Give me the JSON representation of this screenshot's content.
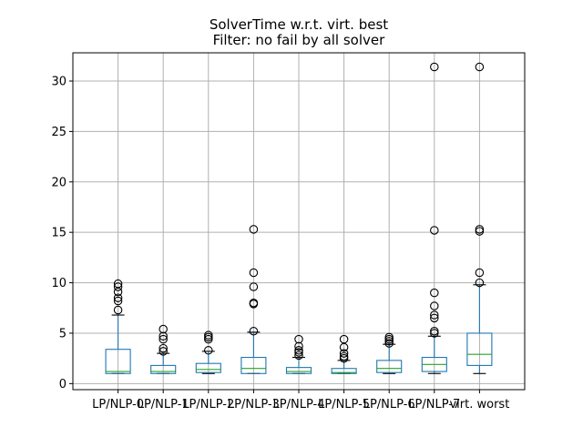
{
  "chart_data": {
    "type": "box",
    "title": "SolverTime w.r.t. virt. best",
    "subtitle": "Filter: no fail by all solver",
    "xlabel": "",
    "ylabel": "",
    "ylim": [
      -0.6,
      32.8
    ],
    "yticks": [
      0,
      5,
      10,
      15,
      20,
      25,
      30
    ],
    "grid": true,
    "colors": {
      "box": "#1f77b4",
      "median": "#2ca02c",
      "cap": "#000000",
      "flier": "#000000",
      "grid": "#b0b0b0"
    },
    "categories": [
      "LP/NLP-0",
      "LP/NLP-1",
      "LP/NLP-2",
      "LP/NLP-3",
      "LP/NLP-4",
      "LP/NLP-5",
      "LP/NLP-6",
      "LP/NLP-7",
      "virt. worst"
    ],
    "boxes": [
      {
        "whislo": 1.0,
        "q1": 1.0,
        "med": 1.2,
        "q3": 3.4,
        "whishi": 6.8,
        "fliers": [
          7.3,
          8.2,
          8.5,
          9.1,
          9.6,
          9.9
        ]
      },
      {
        "whislo": 1.0,
        "q1": 1.0,
        "med": 1.2,
        "q3": 1.8,
        "whishi": 3.0,
        "fliers": [
          3.2,
          3.5,
          4.4,
          4.7,
          5.4
        ]
      },
      {
        "whislo": 1.0,
        "q1": 1.1,
        "med": 1.4,
        "q3": 2.0,
        "whishi": 3.2,
        "fliers": [
          3.3,
          4.4,
          4.6,
          4.8
        ]
      },
      {
        "whislo": 1.0,
        "q1": 1.0,
        "med": 1.5,
        "q3": 2.6,
        "whishi": 5.1,
        "fliers": [
          5.2,
          7.9,
          8.0,
          9.6,
          11.0,
          15.3
        ]
      },
      {
        "whislo": 1.0,
        "q1": 1.0,
        "med": 1.2,
        "q3": 1.6,
        "whishi": 2.6,
        "fliers": [
          2.8,
          3.1,
          3.3,
          3.7,
          4.4
        ]
      },
      {
        "whislo": 1.0,
        "q1": 1.0,
        "med": 1.1,
        "q3": 1.5,
        "whishi": 2.3,
        "fliers": [
          2.5,
          2.7,
          3.0,
          3.6,
          4.4
        ]
      },
      {
        "whislo": 1.0,
        "q1": 1.1,
        "med": 1.5,
        "q3": 2.3,
        "whishi": 3.9,
        "fliers": [
          4.0,
          4.2,
          4.4,
          4.6
        ]
      },
      {
        "whislo": 1.0,
        "q1": 1.2,
        "med": 1.9,
        "q3": 2.6,
        "whishi": 4.7,
        "fliers": [
          5.0,
          5.2,
          6.5,
          6.8,
          7.7,
          9.0,
          15.2,
          31.4
        ]
      },
      {
        "whislo": 1.0,
        "q1": 1.8,
        "med": 2.9,
        "q3": 5.0,
        "whishi": 9.8,
        "fliers": [
          10.0,
          11.0,
          15.1,
          15.3,
          31.4
        ]
      }
    ]
  }
}
